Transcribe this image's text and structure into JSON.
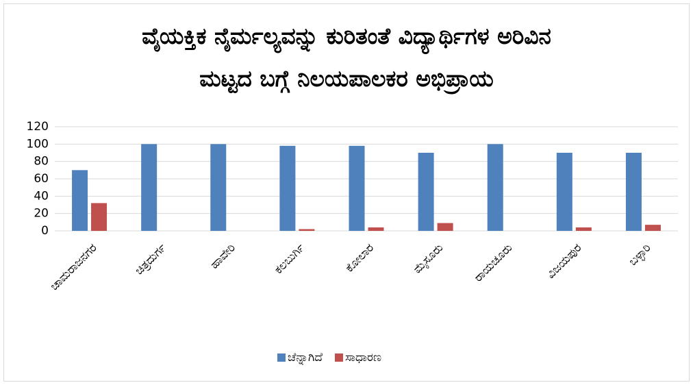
{
  "chart_data": {
    "type": "bar",
    "title": "ವೈಯಕ್ತಿಕ ನೈರ್ಮಲ್ಯವನ್ನು ಕುರಿತಂತೆ ವಿದ್ಯಾರ್ಥಿಗಳ ಅರಿವಿನ ಮಟ್ಟದ ಬಗ್ಗೆ ನಿಲಯಪಾಲಕರ ಅಭಿಪ್ರಾಯ",
    "categories": [
      "ಚಾಮರಾಜನಗರ",
      "ಚಿತ್ರದುರ್ಗ",
      "ಹಾವೇರಿ",
      "ಕಲಬುರ್ಗಿ",
      "ಕೋಲಾರ",
      "ಮೈಸೂರು",
      "ರಾಯಚೂರು",
      "ವಿಜಯಪುರ",
      "ಬಳ್ಳಾರಿ"
    ],
    "series": [
      {
        "name": "ಚೆನ್ನಾಗಿದೆ",
        "color": "#4f81bd",
        "values": [
          70,
          100,
          100,
          98,
          98,
          90,
          100,
          90,
          90
        ]
      },
      {
        "name": "ಸಾಧಾರಣ",
        "color": "#c0504d",
        "values": [
          32,
          0,
          0,
          2,
          4,
          9,
          0,
          4,
          7
        ]
      }
    ],
    "ylim": [
      0,
      120
    ],
    "yticks": [
      0,
      20,
      40,
      60,
      80,
      100,
      120
    ],
    "grid": true,
    "legend": "bottom"
  }
}
